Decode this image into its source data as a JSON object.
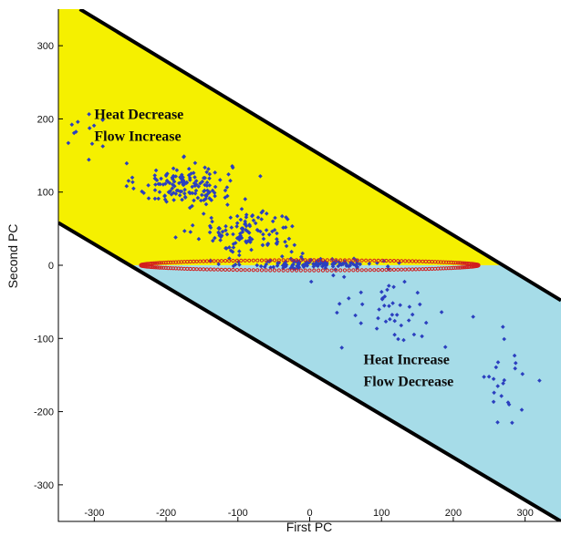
{
  "chart_data": {
    "type": "scatter",
    "xlabel": "First PC",
    "ylabel": "Second PC",
    "xlim": [
      -350,
      350
    ],
    "ylim": [
      -350,
      350
    ],
    "x_ticks": [
      -300,
      -200,
      -100,
      0,
      100,
      200,
      300
    ],
    "y_ticks": [
      300,
      200,
      100,
      0,
      -100,
      -200,
      -300
    ],
    "grid": false,
    "colors": {
      "increase_region": "#f5f000",
      "decrease_region": "#a6dce8",
      "points": "#2b3fbf",
      "ellipse_points": "#d21e1e",
      "boundary": "#000000"
    },
    "boundaries": [
      {
        "name": "upper",
        "from": [
          -320,
          350
        ],
        "to": [
          350,
          -48
        ]
      },
      {
        "name": "lower",
        "from": [
          -350,
          58
        ],
        "to": [
          350,
          -350
        ]
      }
    ],
    "threshold_ellipse": {
      "center": [
        0,
        0
      ],
      "semi_axis_x": 235,
      "semi_axis_y": 7
    },
    "regions": [
      {
        "name": "upper-region",
        "label_lines": [
          "Heat Decrease",
          "Flow Increase"
        ],
        "label_position": [
          -300,
          200
        ]
      },
      {
        "name": "lower-region",
        "label_lines": [
          "Heat Increase",
          "Flow Decrease"
        ],
        "label_position": [
          75,
          -135
        ]
      }
    ],
    "point_clusters": [
      {
        "center": [
          -175,
          110
        ],
        "spread": [
          55,
          25
        ],
        "count": 150
      },
      {
        "center": [
          -85,
          45
        ],
        "spread": [
          60,
          28
        ],
        "count": 120
      },
      {
        "center": [
          10,
          2
        ],
        "spread": [
          75,
          6
        ],
        "count": 130
      },
      {
        "center": [
          110,
          -65
        ],
        "spread": [
          70,
          45
        ],
        "count": 45
      },
      {
        "center": [
          270,
          -150
        ],
        "spread": [
          50,
          60
        ],
        "count": 25
      },
      {
        "center": [
          -310,
          200
        ],
        "spread": [
          35,
          50
        ],
        "count": 14
      }
    ]
  }
}
